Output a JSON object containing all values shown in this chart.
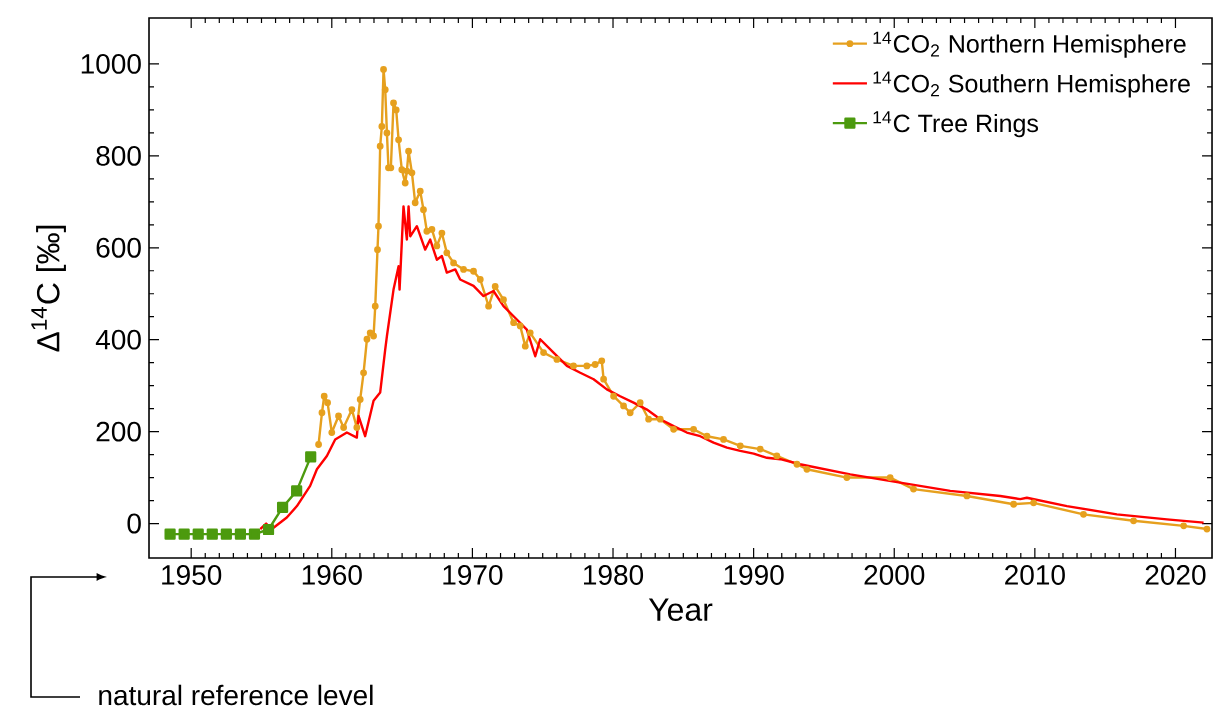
{
  "chart_data": {
    "type": "line",
    "xlabel": "Year",
    "ylabel": "Δ$^{14}$C [‰]",
    "xlim": [
      1947,
      2022.6
    ],
    "ylim": [
      -75,
      1100
    ],
    "xticks": [
      1950,
      1960,
      1970,
      1980,
      1990,
      2000,
      2010,
      2020
    ],
    "yticks": [
      0,
      200,
      400,
      600,
      800,
      1000
    ],
    "legend": "top right",
    "annotations": [
      "natural reference level"
    ],
    "series": [
      {
        "name": "$^{14}$CO$_{2}$ Northern Hemisphere",
        "color": "#e6a01e",
        "marker": "circle",
        "x": [
          1959.06,
          1959.3,
          1959.46,
          1959.7,
          1960.0,
          1960.48,
          1960.84,
          1961.43,
          1961.78,
          1962.02,
          1962.26,
          1962.5,
          1962.73,
          1962.97,
          1963.09,
          1963.25,
          1963.32,
          1963.44,
          1963.56,
          1963.68,
          1963.8,
          1963.92,
          1964.03,
          1964.2,
          1964.39,
          1964.58,
          1964.75,
          1964.98,
          1965.22,
          1965.34,
          1965.46,
          1965.7,
          1965.93,
          1966.29,
          1966.52,
          1966.76,
          1967.12,
          1967.47,
          1967.83,
          1968.18,
          1968.66,
          1969.37,
          1970.08,
          1970.56,
          1971.15,
          1971.62,
          1972.21,
          1972.93,
          1973.4,
          1973.76,
          1974.11,
          1975.06,
          1976.01,
          1977.19,
          1978.14,
          1978.73,
          1979.2,
          1979.33,
          1980.04,
          1980.75,
          1981.22,
          1981.93,
          1982.53,
          1983.36,
          1984.31,
          1985.73,
          1986.68,
          1987.86,
          1989.05,
          1990.47,
          1991.65,
          1993.08,
          1993.79,
          1996.63,
          1999.71,
          2001.37,
          2005.17,
          2008.49,
          2009.91,
          2013.46,
          2017.02,
          2020.58,
          2022.24
        ],
        "values": [
          172,
          241,
          277,
          263,
          198,
          234,
          209,
          248,
          209,
          270,
          328,
          401,
          415,
          408,
          473,
          596,
          647,
          821,
          864,
          988,
          944,
          850,
          774,
          774,
          915,
          900,
          835,
          770,
          741,
          767,
          810,
          763,
          698,
          723,
          683,
          636,
          640,
          604,
          632,
          589,
          567,
          553,
          549,
          531,
          473,
          516,
          487,
          437,
          430,
          386,
          415,
          372,
          357,
          343,
          343,
          346,
          354,
          314,
          277,
          256,
          241,
          263,
          227,
          227,
          205,
          205,
          190,
          183,
          169,
          162,
          147,
          129,
          118,
          100,
          100,
          75,
          60,
          42,
          45,
          20,
          6,
          -5,
          -12
        ]
      },
      {
        "name": "$^{14}$CO$_{2}$ Southern Hemisphere",
        "color": "#ff0000",
        "marker": "none",
        "x": [
          1954.91,
          1955.33,
          1955.74,
          1956.8,
          1957.52,
          1958.46,
          1958.94,
          1959.65,
          1960.24,
          1961.07,
          1961.78,
          1961.9,
          1962.37,
          1962.97,
          1963.44,
          1963.8,
          1963.92,
          1964.39,
          1964.75,
          1964.82,
          1965.1,
          1965.34,
          1965.46,
          1965.58,
          1966.05,
          1966.64,
          1967.0,
          1967.47,
          1967.83,
          1968.18,
          1968.78,
          1969.13,
          1970.08,
          1970.79,
          1971.5,
          1972.21,
          1972.93,
          1973.87,
          1974.47,
          1974.82,
          1975.77,
          1976.72,
          1977.67,
          1978.62,
          1979.56,
          1980.51,
          1981.46,
          1982.41,
          1983.36,
          1984.31,
          1985.25,
          1986.2,
          1987.15,
          1988.1,
          1989.05,
          1990.0,
          1990.94,
          1991.9,
          1993.3,
          1996.87,
          2000.42,
          2003.98,
          2007.54,
          2008.96,
          2009.43,
          2012.28,
          2015.83,
          2019.39,
          2022.0
        ],
        "values": [
          -12,
          0,
          -12,
          13,
          38,
          82,
          118,
          147,
          183,
          198,
          187,
          234,
          190,
          267,
          285,
          379,
          408,
          509,
          560,
          509,
          690,
          618,
          690,
          625,
          647,
          596,
          618,
          574,
          582,
          546,
          553,
          531,
          517,
          495,
          506,
          473,
          451,
          422,
          364,
          401,
          372,
          343,
          328,
          314,
          292,
          277,
          263,
          248,
          227,
          212,
          198,
          190,
          176,
          165,
          158,
          152,
          143,
          140,
          129,
          107,
          89,
          71,
          60,
          53,
          56,
          38,
          20,
          9,
          2
        ]
      },
      {
        "name": "$^{14}$C Tree Rings",
        "color": "#4c9a0e",
        "marker": "square",
        "x": [
          1948.5,
          1949.5,
          1950.5,
          1951.5,
          1952.5,
          1953.5,
          1954.5,
          1955.5,
          1956.5,
          1957.5,
          1958.5
        ],
        "values": [
          -23,
          -23,
          -23,
          -23,
          -23,
          -23,
          -23,
          -13,
          35,
          71,
          145
        ]
      }
    ]
  }
}
